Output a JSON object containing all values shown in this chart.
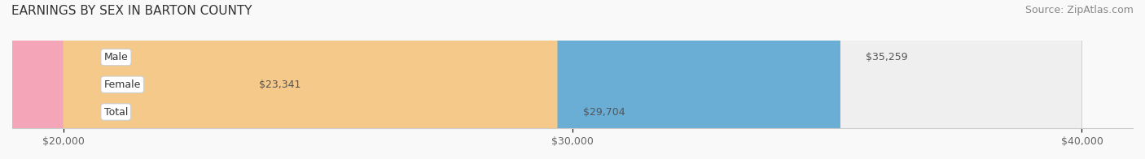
{
  "title": "EARNINGS BY SEX IN BARTON COUNTY",
  "source": "Source: ZipAtlas.com",
  "categories": [
    "Male",
    "Female",
    "Total"
  ],
  "values": [
    35259,
    23341,
    29704
  ],
  "bar_colors": [
    "#6aaed6",
    "#f4a6b8",
    "#f5c98a"
  ],
  "label_bg_color": "#ffffff",
  "bar_bg_color": "#eeeeee",
  "x_min": 20000,
  "x_max": 40000,
  "x_ticks": [
    20000,
    30000,
    40000
  ],
  "x_tick_labels": [
    "$20,000",
    "$30,000",
    "$40,000"
  ],
  "title_fontsize": 11,
  "source_fontsize": 9,
  "label_fontsize": 9,
  "value_fontsize": 9,
  "tick_fontsize": 9,
  "bar_height": 0.55,
  "background_color": "#f9f9f9"
}
